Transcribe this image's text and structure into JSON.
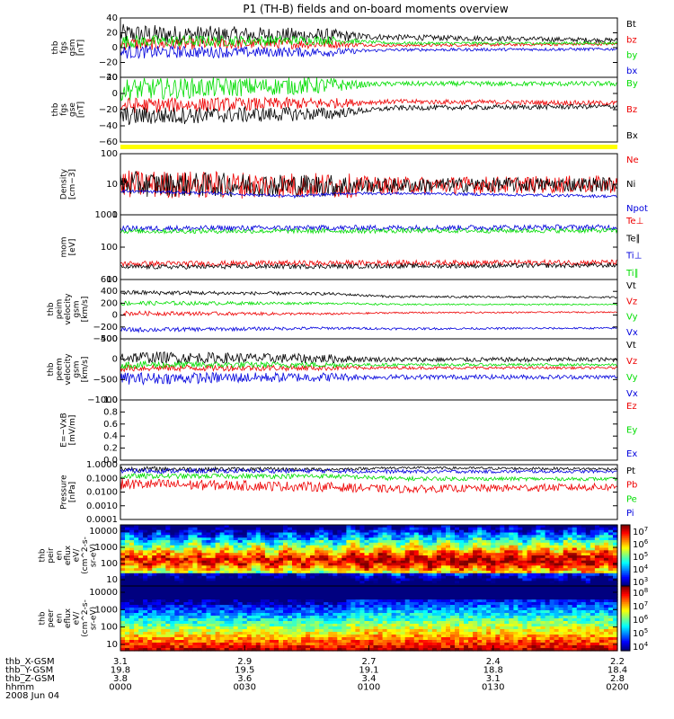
{
  "title": "P1 (TH-B) fields and on-board moments overview",
  "colors": {
    "black": "#000000",
    "red": "#ee0000",
    "green": "#00dd00",
    "blue": "#0000dd",
    "yellow": "#ffff00"
  },
  "chart_data": [
    {
      "type": "line",
      "ylabel": [
        "thb",
        "fgs",
        "gsm",
        "[nT]"
      ],
      "yticks": [
        "40",
        "20",
        "0",
        "−20",
        "−40"
      ],
      "ylim": [
        -40,
        40
      ],
      "series": [
        {
          "name": "Bt",
          "color": "black",
          "levels": [
            [
              0,
              18
            ],
            [
              0.42,
              16
            ],
            [
              0.55,
              14
            ],
            [
              1,
              10
            ]
          ],
          "noise": [
            [
              0,
              14
            ],
            [
              0.42,
              10
            ],
            [
              0.5,
              4
            ],
            [
              1,
              3
            ]
          ]
        },
        {
          "name": "bz",
          "color": "red",
          "levels": [
            [
              0,
              5
            ],
            [
              0.42,
              5
            ],
            [
              0.55,
              3
            ],
            [
              1,
              5
            ]
          ],
          "noise": [
            [
              0,
              9
            ],
            [
              0.42,
              6
            ],
            [
              0.5,
              2
            ],
            [
              1,
              2
            ]
          ]
        },
        {
          "name": "by",
          "color": "green",
          "levels": [
            [
              0,
              8
            ],
            [
              0.42,
              10
            ],
            [
              0.55,
              6
            ],
            [
              1,
              6
            ]
          ],
          "noise": [
            [
              0,
              9
            ],
            [
              0.42,
              6
            ],
            [
              0.5,
              2
            ],
            [
              1,
              2
            ]
          ]
        },
        {
          "name": "bx",
          "color": "blue",
          "levels": [
            [
              0,
              -6
            ],
            [
              0.42,
              -6
            ],
            [
              0.55,
              -3
            ],
            [
              1,
              -2
            ]
          ],
          "noise": [
            [
              0,
              9
            ],
            [
              0.42,
              6
            ],
            [
              0.5,
              2
            ],
            [
              1,
              2
            ]
          ]
        }
      ]
    },
    {
      "type": "line",
      "ylabel": [
        "thb",
        "fgs",
        "gse",
        "[nT]"
      ],
      "yticks": [
        "20",
        "0",
        "−20",
        "−40",
        "−60"
      ],
      "ylim": [
        -60,
        20
      ],
      "series": [
        {
          "name": "By",
          "color": "green",
          "levels": [
            [
              0,
              5
            ],
            [
              0.42,
              10
            ],
            [
              0.55,
              12
            ],
            [
              1,
              12
            ]
          ],
          "noise": [
            [
              0,
              14
            ],
            [
              0.42,
              10
            ],
            [
              0.5,
              3
            ],
            [
              1,
              3
            ]
          ]
        },
        {
          "name": "Bz",
          "color": "red",
          "levels": [
            [
              0,
              -15
            ],
            [
              0.42,
              -12
            ],
            [
              0.55,
              -10
            ],
            [
              1,
              -12
            ]
          ],
          "noise": [
            [
              0,
              10
            ],
            [
              0.42,
              7
            ],
            [
              0.5,
              3
            ],
            [
              1,
              3
            ]
          ]
        },
        {
          "name": "Bx",
          "color": "black",
          "levels": [
            [
              0,
              -28
            ],
            [
              0.42,
              -25
            ],
            [
              0.55,
              -18
            ],
            [
              1,
              -16
            ]
          ],
          "noise": [
            [
              0,
              12
            ],
            [
              0.42,
              8
            ],
            [
              0.5,
              3
            ],
            [
              1,
              3
            ]
          ]
        }
      ]
    },
    {
      "type": "line",
      "ylabel": [
        "Density",
        "[cm−3]"
      ],
      "yticks": [
        "100",
        "10",
        "1"
      ],
      "ylim": [
        1,
        100
      ],
      "scale": "log",
      "series": [
        {
          "name": "Ne",
          "color": "red",
          "levels": [
            [
              0,
              10
            ],
            [
              0.45,
              9
            ],
            [
              1,
              10
            ]
          ],
          "noise": [
            [
              0,
              5
            ],
            [
              0.45,
              4
            ],
            [
              0.5,
              2
            ],
            [
              1,
              2
            ]
          ]
        },
        {
          "name": "Ni",
          "color": "black",
          "levels": [
            [
              0,
              10
            ],
            [
              0.45,
              9
            ],
            [
              1,
              10
            ]
          ],
          "noise": [
            [
              0,
              4
            ],
            [
              0.45,
              3
            ],
            [
              0.5,
              1.5
            ],
            [
              1,
              1.5
            ]
          ]
        },
        {
          "name": "Npot",
          "color": "blue",
          "levels": [
            [
              0,
              6
            ],
            [
              0.2,
              5
            ],
            [
              0.35,
              4
            ],
            [
              0.45,
              5
            ],
            [
              0.6,
              5
            ],
            [
              0.8,
              4.5
            ],
            [
              1,
              4
            ]
          ],
          "noise": [
            [
              0,
              0.2
            ],
            [
              1,
              0.2
            ]
          ]
        }
      ]
    },
    {
      "type": "line",
      "ylabel": [
        "mom",
        "[eV]"
      ],
      "yticks": [
        "1000",
        "100",
        "10"
      ],
      "ylim": [
        10,
        3000
      ],
      "scale": "log",
      "series": [
        {
          "name": "Te⊥",
          "color": "red",
          "levels": [
            [
              0,
              40
            ],
            [
              1,
              45
            ]
          ],
          "noise": [
            [
              0,
              0.5
            ],
            [
              1,
              0.5
            ]
          ]
        },
        {
          "name": "Te∥",
          "color": "black",
          "levels": [
            [
              0,
              30
            ],
            [
              1,
              35
            ]
          ],
          "noise": [
            [
              0,
              0.4
            ],
            [
              1,
              0.4
            ]
          ]
        },
        {
          "name": "Ti⊥",
          "color": "blue",
          "levels": [
            [
              0,
              900
            ],
            [
              1,
              1000
            ]
          ],
          "noise": [
            [
              0,
              0.5
            ],
            [
              1,
              0.5
            ]
          ]
        },
        {
          "name": "Ti∥",
          "color": "green",
          "levels": [
            [
              0,
              700
            ],
            [
              1,
              750
            ]
          ],
          "noise": [
            [
              0,
              0.4
            ],
            [
              1,
              0.4
            ]
          ]
        }
      ]
    },
    {
      "type": "line",
      "ylabel": [
        "thb",
        "peim",
        "velocity",
        "gsm",
        "[km/s]"
      ],
      "yticks": [
        "600",
        "400",
        "200",
        "0",
        "−200",
        "−400"
      ],
      "ylim": [
        -400,
        600
      ],
      "series": [
        {
          "name": "Vt",
          "color": "black",
          "levels": [
            [
              0,
              380
            ],
            [
              0.42,
              360
            ],
            [
              0.55,
              310
            ],
            [
              1,
              300
            ]
          ],
          "noise": [
            [
              0,
              40
            ],
            [
              0.5,
              20
            ],
            [
              1,
              15
            ]
          ]
        },
        {
          "name": "Vz",
          "color": "red",
          "levels": [
            [
              0,
              30
            ],
            [
              0.42,
              20
            ],
            [
              0.55,
              40
            ],
            [
              1,
              50
            ]
          ],
          "noise": [
            [
              0,
              40
            ],
            [
              0.5,
              15
            ],
            [
              1,
              10
            ]
          ]
        },
        {
          "name": "Vy",
          "color": "green",
          "levels": [
            [
              0,
              200
            ],
            [
              0.42,
              200
            ],
            [
              0.55,
              180
            ],
            [
              1,
              180
            ]
          ],
          "noise": [
            [
              0,
              40
            ],
            [
              0.5,
              15
            ],
            [
              1,
              10
            ]
          ]
        },
        {
          "name": "Vx",
          "color": "blue",
          "levels": [
            [
              0,
              -250
            ],
            [
              0.42,
              -220
            ],
            [
              0.55,
              -230
            ],
            [
              1,
              -220
            ]
          ],
          "noise": [
            [
              0,
              40
            ],
            [
              0.5,
              20
            ],
            [
              1,
              15
            ]
          ]
        }
      ]
    },
    {
      "type": "line",
      "ylabel": [
        "thb",
        "peem",
        "velocity",
        "gsm",
        "[km/s]"
      ],
      "yticks": [
        "500",
        "0",
        "−500",
        "−1000"
      ],
      "ylim": [
        -1000,
        1000
      ],
      "series": [
        {
          "name": "Vt",
          "color": "black",
          "levels": [
            [
              0,
              400
            ],
            [
              0.42,
              350
            ],
            [
              0.55,
              320
            ],
            [
              1,
              320
            ]
          ],
          "noise": [
            [
              0,
              200
            ],
            [
              0.42,
              150
            ],
            [
              0.5,
              80
            ],
            [
              1,
              70
            ]
          ]
        },
        {
          "name": "Vz",
          "color": "red",
          "levels": [
            [
              0,
              50
            ],
            [
              1,
              50
            ]
          ],
          "noise": [
            [
              0,
              120
            ],
            [
              0.42,
              90
            ],
            [
              0.5,
              50
            ],
            [
              1,
              40
            ]
          ]
        },
        {
          "name": "Vy",
          "color": "green",
          "levels": [
            [
              0,
              150
            ],
            [
              1,
              150
            ]
          ],
          "noise": [
            [
              0,
              120
            ],
            [
              0.42,
              90
            ],
            [
              0.5,
              50
            ],
            [
              1,
              40
            ]
          ]
        },
        {
          "name": "Vx",
          "color": "blue",
          "levels": [
            [
              0,
              -300
            ],
            [
              0.42,
              -250
            ],
            [
              0.55,
              -250
            ],
            [
              1,
              -250
            ]
          ],
          "noise": [
            [
              0,
              200
            ],
            [
              0.42,
              150
            ],
            [
              0.5,
              80
            ],
            [
              1,
              70
            ]
          ]
        }
      ]
    },
    {
      "type": "line",
      "ylabel": [
        "E=−VxB",
        "[mV/m]"
      ],
      "yticks": [
        "1.0",
        "0.8",
        "0.6",
        "0.4",
        "0.2",
        "0.0"
      ],
      "ylim": [
        0,
        1
      ],
      "series": [
        {
          "name": "Ez",
          "color": "red",
          "levels": [],
          "noise": []
        },
        {
          "name": "Ey",
          "color": "green",
          "levels": [],
          "noise": []
        },
        {
          "name": "Ex",
          "color": "blue",
          "levels": [],
          "noise": []
        }
      ]
    },
    {
      "type": "line",
      "ylabel": [
        "Pressure",
        "[nPa]"
      ],
      "yticks": [
        "1.0000",
        "0.1000",
        "0.0100",
        "0.0010",
        "0.0001"
      ],
      "ylim": [
        0.0001,
        1.5
      ],
      "scale": "log",
      "series": [
        {
          "name": "Pt",
          "color": "black",
          "levels": [
            [
              0,
              0.7
            ],
            [
              0.42,
              0.65
            ],
            [
              0.55,
              0.85
            ],
            [
              1,
              0.7
            ]
          ],
          "noise": [
            [
              0,
              1.2
            ],
            [
              0.5,
              0.5
            ],
            [
              1,
              0.5
            ]
          ]
        },
        {
          "name": "Pb",
          "color": "red",
          "levels": [
            [
              0,
              0.05
            ],
            [
              0.42,
              0.03
            ],
            [
              0.55,
              0.02
            ],
            [
              1,
              0.03
            ]
          ],
          "noise": [
            [
              0,
              4
            ],
            [
              0.42,
              3
            ],
            [
              0.55,
              2
            ],
            [
              1,
              2
            ]
          ]
        },
        {
          "name": "Pe",
          "color": "green",
          "levels": [
            [
              0,
              0.2
            ],
            [
              0.42,
              0.2
            ],
            [
              0.55,
              0.13
            ],
            [
              1,
              0.12
            ]
          ],
          "noise": [
            [
              0,
              1.2
            ],
            [
              1,
              0.6
            ]
          ]
        },
        {
          "name": "Pi",
          "color": "blue",
          "levels": [
            [
              0,
              0.5
            ],
            [
              0.42,
              0.5
            ],
            [
              0.55,
              0.45
            ],
            [
              1,
              0.45
            ]
          ],
          "noise": [
            [
              0,
              1
            ],
            [
              1,
              0.5
            ]
          ]
        }
      ]
    },
    {
      "type": "heatmap",
      "ylabel": [
        "thb",
        "peir",
        "en",
        "eflux",
        "eV/",
        "(cm^2-s-",
        "sr-eV)"
      ],
      "yticks": [
        "10000",
        "1000",
        "100",
        "10"
      ],
      "ylim": [
        10,
        20000
      ],
      "scale": "log",
      "colorbar": {
        "ticks": [
          "10^7",
          "10^6",
          "10^5",
          "10^4",
          "10^3"
        ],
        "range": [
          3,
          8
        ]
      }
    },
    {
      "type": "heatmap",
      "ylabel": [
        "thb",
        "peer",
        "en",
        "eflux",
        "eV/",
        "(cm^2-s-",
        "sr-eV)"
      ],
      "yticks": [
        "10000",
        "1000",
        "100",
        "10"
      ],
      "ylim": [
        7,
        20000
      ],
      "scale": "log",
      "colorbar": {
        "ticks": [
          "10^8",
          "10^7",
          "10^6",
          "10^5",
          "10^4"
        ],
        "range": [
          3.5,
          8.5
        ]
      }
    }
  ],
  "xaxis": {
    "row_labels": [
      "thb_X-GSM",
      "thb_Y-GSM",
      "thb_Z-GSM",
      "hhmm",
      "2008 Jun 04"
    ],
    "ticks": [
      {
        "x": "3.1",
        "y": "19.8",
        "z": "3.8",
        "t": "0000"
      },
      {
        "x": "2.9",
        "y": "19.5",
        "z": "3.6",
        "t": "0030"
      },
      {
        "x": "2.7",
        "y": "19.1",
        "z": "3.4",
        "t": "0100"
      },
      {
        "x": "2.4",
        "y": "18.8",
        "z": "3.1",
        "t": "0130"
      },
      {
        "x": "2.2",
        "y": "18.4",
        "z": "2.8",
        "t": "0200"
      }
    ]
  }
}
